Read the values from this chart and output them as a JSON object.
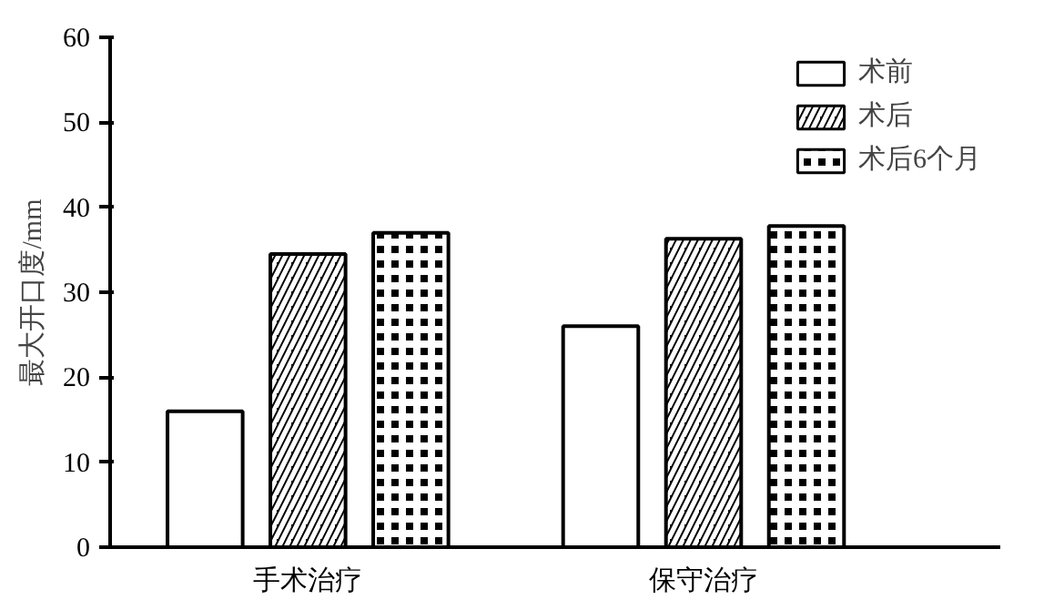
{
  "chart_data": {
    "type": "bar",
    "ylabel": "最大开口度/mm",
    "categories": [
      "手术治疗",
      "保守治疗"
    ],
    "series": [
      {
        "name": "术前",
        "color": "#ffffff",
        "values": [
          16,
          26
        ]
      },
      {
        "name": "术后",
        "color": "#000000",
        "values": [
          34.5,
          36.3
        ]
      },
      {
        "name": "术后6个月",
        "color": "#000000",
        "values": [
          37,
          37.8
        ]
      }
    ],
    "ylim": [
      0,
      60
    ],
    "yticks": [
      0,
      10,
      20,
      30,
      40,
      50,
      60
    ],
    "grid": false,
    "legend": "top right"
  }
}
